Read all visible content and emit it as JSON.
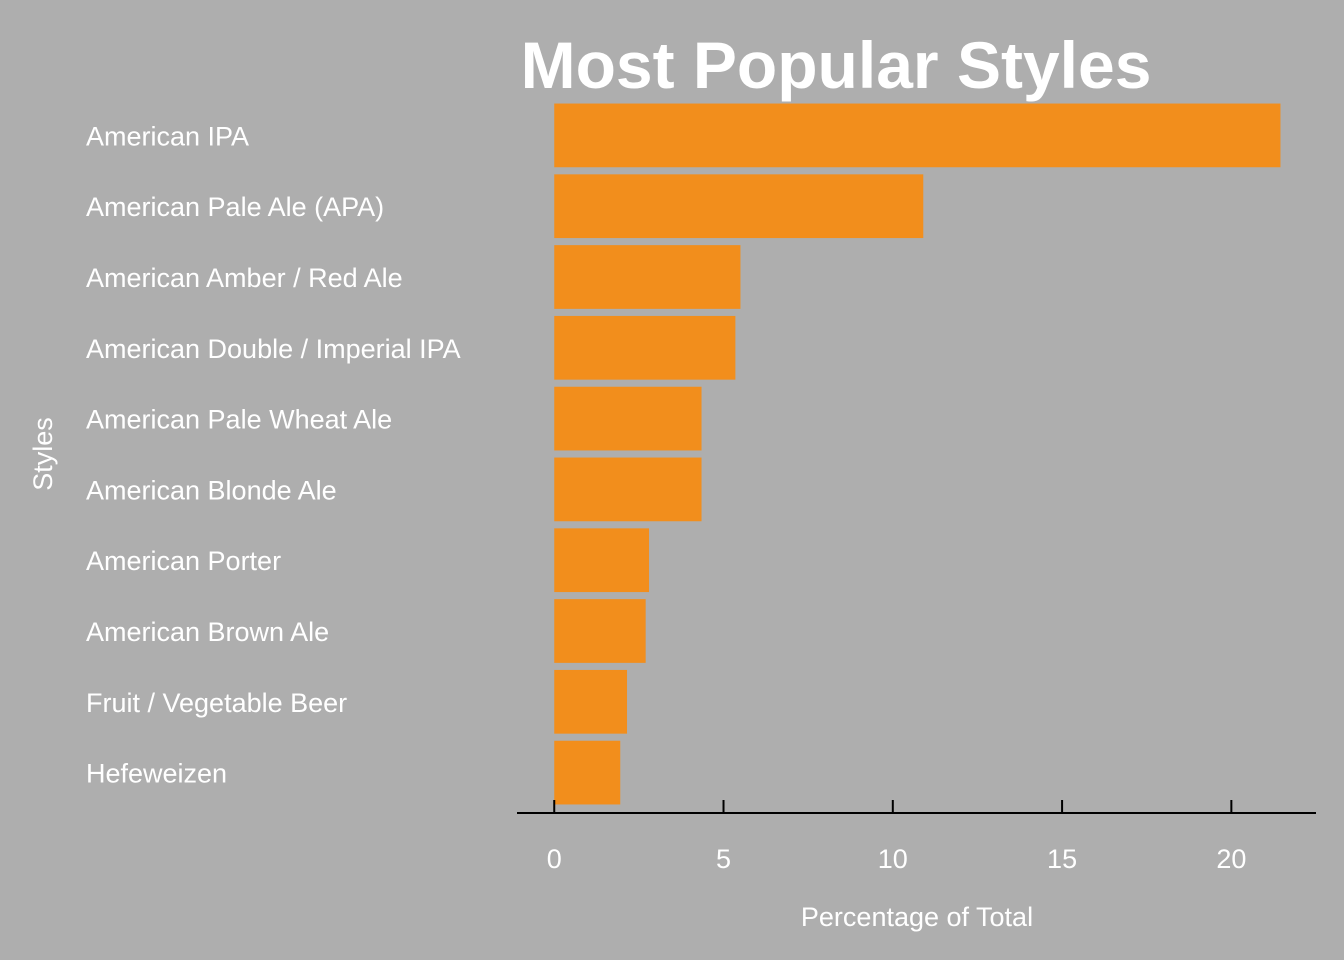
{
  "chart_data": {
    "type": "bar",
    "orientation": "horizontal",
    "title": "Most Popular Styles",
    "xlabel": "Percentage of Total",
    "ylabel": "Styles",
    "categories": [
      "American IPA",
      "American Pale Ale (APA)",
      "American Amber / Red Ale",
      "American Double / Imperial IPA",
      "American Pale Wheat Ale",
      "American Blonde Ale",
      "American Porter",
      "American Brown Ale",
      "Fruit / Vegetable Beer",
      "Hefeweizen"
    ],
    "values": [
      21.45,
      10.9,
      5.5,
      5.35,
      4.35,
      4.35,
      2.8,
      2.7,
      2.15,
      1.95
    ],
    "xlim": [
      -1.1,
      22.5
    ],
    "xticks": [
      0,
      5,
      10,
      15,
      20
    ],
    "xtick_labels": [
      "0",
      "5",
      "10",
      "15",
      "20"
    ],
    "grid": false,
    "legend": "none",
    "colors": {
      "background": "#AEAEAE",
      "bar": "#F28E1C",
      "text": "#FFFFFF",
      "axis": "#000000"
    }
  }
}
